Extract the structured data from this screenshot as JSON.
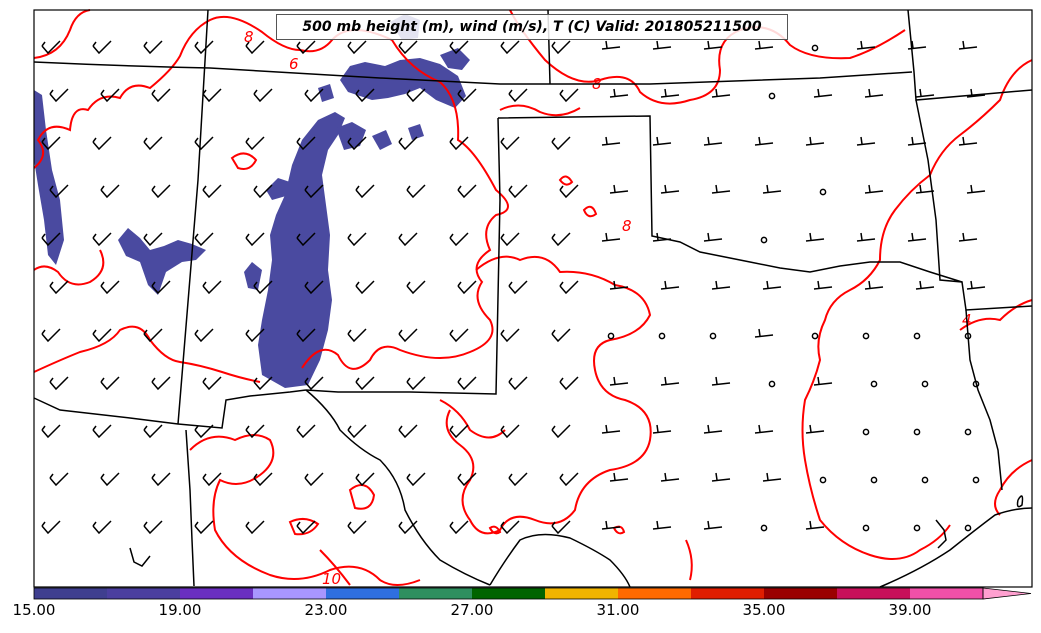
{
  "title": "500 mb height (m), wind (m/s), T (C) Valid: 201805211500",
  "contour_labels": [
    "8",
    "6",
    "8",
    "8",
    "4",
    "10"
  ],
  "colorbar": {
    "tick_labels": [
      "15.00",
      "19.00",
      "23.00",
      "27.00",
      "31.00",
      "35.00",
      "39.00"
    ],
    "min": 15,
    "max": 41,
    "colors": [
      "#3f3f8f",
      "#4b3f9f",
      "#6a2fc0",
      "#a896ff",
      "#2f6fe0",
      "#2e8f5f",
      "#006400",
      "#f0b400",
      "#ff6a00",
      "#e01e00",
      "#9a0000",
      "#c8105a",
      "#f050a8",
      "#ffa0d0"
    ]
  },
  "colors": {
    "contour": "#ff0000",
    "border": "#000000",
    "shading": "#4a4aa0"
  }
}
